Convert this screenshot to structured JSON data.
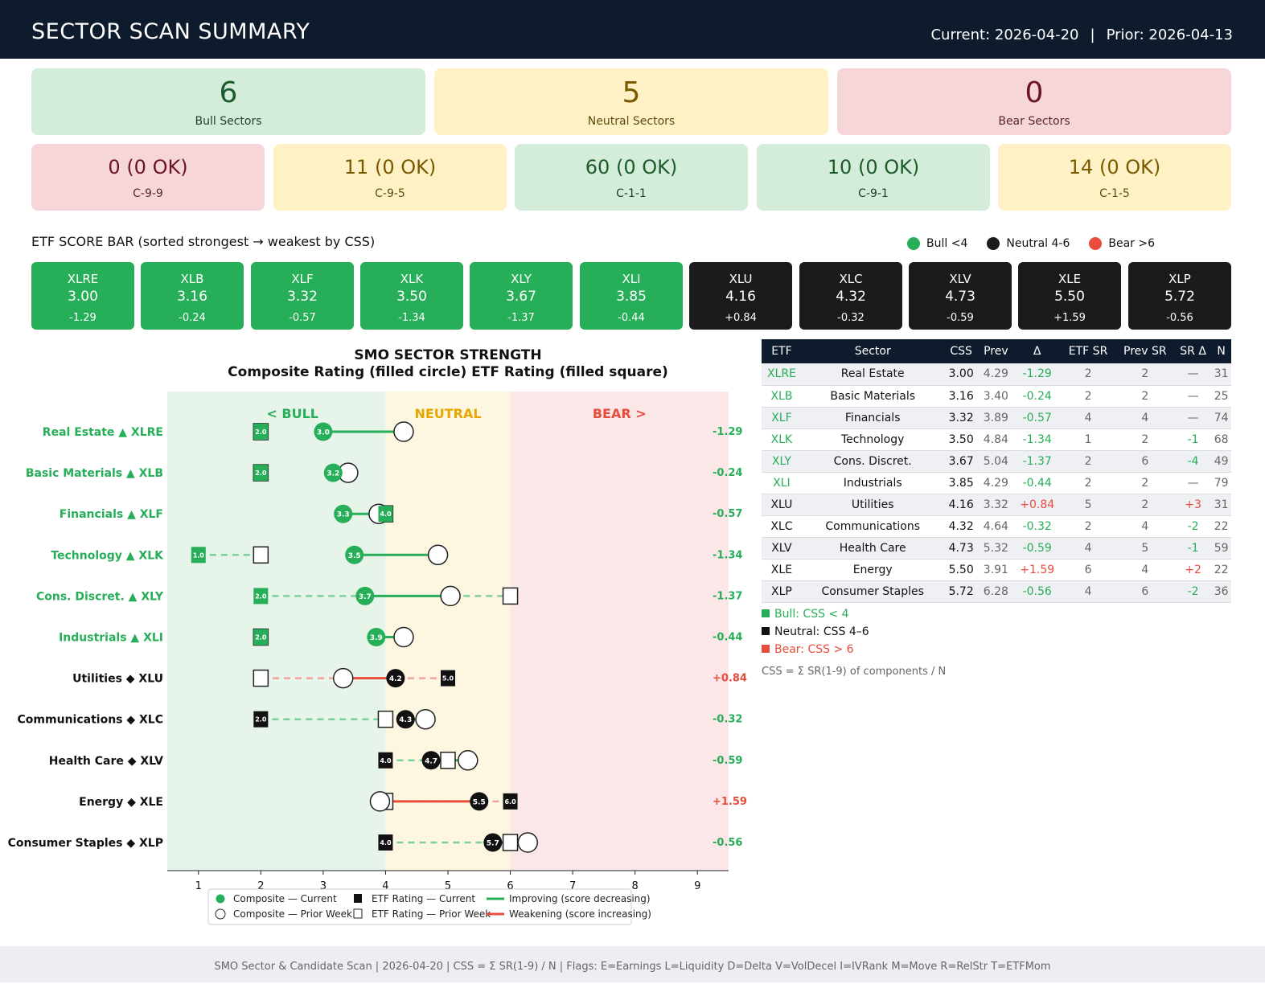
{
  "header": {
    "title": "SECTOR SCAN SUMMARY",
    "current": "Current: 2026-04-20",
    "separator": "|",
    "prior": "Prior: 2026-04-13"
  },
  "summary": [
    {
      "value": "6",
      "label": "Bull Sectors",
      "tone": "green"
    },
    {
      "value": "5",
      "label": "Neutral Sectors",
      "tone": "yellow"
    },
    {
      "value": "0",
      "label": "Bear Sectors",
      "tone": "red"
    }
  ],
  "criteria": [
    {
      "value": "0 (0 OK)",
      "label": "C-9-9",
      "tone": "red"
    },
    {
      "value": "11 (0 OK)",
      "label": "C-9-5",
      "tone": "yellow"
    },
    {
      "value": "60 (0 OK)",
      "label": "C-1-1",
      "tone": "green"
    },
    {
      "value": "10 (0 OK)",
      "label": "C-9-1",
      "tone": "green"
    },
    {
      "value": "14 (0 OK)",
      "label": "C-1-5",
      "tone": "yellow"
    }
  ],
  "score_bar": {
    "title": "ETF SCORE BAR  (sorted strongest → weakest by CSS)",
    "legend": [
      {
        "label": "Bull <4",
        "color": "#27ae58"
      },
      {
        "label": "Neutral 4-6",
        "color": "#1b1b1b"
      },
      {
        "label": "Bear >6",
        "color": "#e74c3c"
      }
    ],
    "items": [
      {
        "etf": "XLRE",
        "css": "3.00",
        "delta": "-1.29",
        "tone": "green"
      },
      {
        "etf": "XLB",
        "css": "3.16",
        "delta": "-0.24",
        "tone": "green"
      },
      {
        "etf": "XLF",
        "css": "3.32",
        "delta": "-0.57",
        "tone": "green"
      },
      {
        "etf": "XLK",
        "css": "3.50",
        "delta": "-1.34",
        "tone": "green"
      },
      {
        "etf": "XLY",
        "css": "3.67",
        "delta": "-1.37",
        "tone": "green"
      },
      {
        "etf": "XLI",
        "css": "3.85",
        "delta": "-0.44",
        "tone": "green"
      },
      {
        "etf": "XLU",
        "css": "4.16",
        "delta": "+0.84",
        "tone": "black"
      },
      {
        "etf": "XLC",
        "css": "4.32",
        "delta": "-0.32",
        "tone": "black"
      },
      {
        "etf": "XLV",
        "css": "4.73",
        "delta": "-0.59",
        "tone": "black"
      },
      {
        "etf": "XLE",
        "css": "5.50",
        "delta": "+1.59",
        "tone": "black"
      },
      {
        "etf": "XLP",
        "css": "5.72",
        "delta": "-0.56",
        "tone": "black"
      }
    ]
  },
  "chart_data": {
    "type": "scatter",
    "title": "SMO SECTOR STRENGTH",
    "subtitle": "Composite Rating (filled circle)   ETF Rating (filled square)",
    "zones": [
      {
        "label": "< BULL",
        "from": 0.5,
        "to": 4,
        "color": "#e6f4ea",
        "text_color": "#27ae58"
      },
      {
        "label": "NEUTRAL",
        "from": 4,
        "to": 6,
        "color": "#fdf6e0",
        "text_color": "#e6a700"
      },
      {
        "label": "BEAR >",
        "from": 6,
        "to": 9.5,
        "color": "#fbe6e8",
        "text_color": "#e74c3c"
      }
    ],
    "xlim": [
      0.5,
      9.5
    ],
    "xticks": [
      "1",
      "2",
      "3",
      "4",
      "5",
      "6",
      "7",
      "8",
      "9"
    ],
    "rows": [
      {
        "label": "Real Estate ▲ XLRE",
        "tone": "bull",
        "comp": 3.0,
        "comp_label": "3.0",
        "prev_comp": 4.29,
        "etf": 2.0,
        "etf_label": "2.0",
        "prev_etf": 2.0,
        "delta": "-1.29"
      },
      {
        "label": "Basic Materials ▲ XLB",
        "tone": "bull",
        "comp": 3.16,
        "comp_label": "3.2",
        "prev_comp": 3.4,
        "etf": 2.0,
        "etf_label": "2.0",
        "prev_etf": 2.0,
        "delta": "-0.24"
      },
      {
        "label": "Financials ▲ XLF",
        "tone": "bull",
        "comp": 3.32,
        "comp_label": "3.3",
        "prev_comp": 3.89,
        "etf": 4.0,
        "etf_label": "4.0",
        "prev_etf": 4.0,
        "delta": "-0.57"
      },
      {
        "label": "Technology ▲ XLK",
        "tone": "bull",
        "comp": 3.5,
        "comp_label": "3.5",
        "prev_comp": 4.84,
        "etf": 1.0,
        "etf_label": "1.0",
        "prev_etf": 2.0,
        "delta": "-1.34"
      },
      {
        "label": "Cons. Discret. ▲ XLY",
        "tone": "bull",
        "comp": 3.67,
        "comp_label": "3.7",
        "prev_comp": 5.04,
        "etf": 2.0,
        "etf_label": "2.0",
        "prev_etf": 6.0,
        "delta": "-1.37"
      },
      {
        "label": "Industrials ▲ XLI",
        "tone": "bull",
        "comp": 3.85,
        "comp_label": "3.9",
        "prev_comp": 4.29,
        "etf": 2.0,
        "etf_label": "2.0",
        "prev_etf": 2.0,
        "delta": "-0.44"
      },
      {
        "label": "Utilities ◆ XLU",
        "tone": "neutral",
        "comp": 4.16,
        "comp_label": "4.2",
        "prev_comp": 3.32,
        "etf": 5.0,
        "etf_label": "5.0",
        "prev_etf": 2.0,
        "delta": "+0.84"
      },
      {
        "label": "Communications ◆ XLC",
        "tone": "neutral",
        "comp": 4.32,
        "comp_label": "4.3",
        "prev_comp": 4.64,
        "etf": 2.0,
        "etf_label": "2.0",
        "prev_etf": 4.0,
        "delta": "-0.32"
      },
      {
        "label": "Health Care ◆ XLV",
        "tone": "neutral",
        "comp": 4.73,
        "comp_label": "4.7",
        "prev_comp": 5.32,
        "etf": 4.0,
        "etf_label": "4.0",
        "prev_etf": 5.0,
        "delta": "-0.59"
      },
      {
        "label": "Energy ◆ XLE",
        "tone": "neutral",
        "comp": 5.5,
        "comp_label": "5.5",
        "prev_comp": 3.91,
        "etf": 6.0,
        "etf_label": "6.0",
        "prev_etf": 4.0,
        "delta": "+1.59"
      },
      {
        "label": "Consumer Staples ◆ XLP",
        "tone": "neutral",
        "comp": 5.72,
        "comp_label": "5.7",
        "prev_comp": 6.28,
        "etf": 4.0,
        "etf_label": "4.0",
        "prev_etf": 6.0,
        "delta": "-0.56"
      }
    ],
    "legend": [
      "Composite — Current",
      "Composite — Prior Week",
      "ETF Rating — Current",
      "ETF Rating — Prior Week",
      "Improving (score decreasing)",
      "Weakening (score increasing)"
    ],
    "colors": {
      "bull": "#27ae58",
      "neutral": "#111111",
      "improve": "#27ae58",
      "weaken": "#e74c3c"
    }
  },
  "table": {
    "columns": [
      "ETF",
      "Sector",
      "CSS",
      "Prev",
      "Δ",
      "ETF SR",
      "Prev SR",
      "SR Δ",
      "N"
    ],
    "rows": [
      {
        "etf": "XLRE",
        "sector": "Real Estate",
        "css": "3.00",
        "prev": "4.29",
        "delta": "-1.29",
        "sr": "2",
        "prev_sr": "2",
        "sr_delta": "—",
        "n": "31",
        "tone": "bull"
      },
      {
        "etf": "XLB",
        "sector": "Basic Materials",
        "css": "3.16",
        "prev": "3.40",
        "delta": "-0.24",
        "sr": "2",
        "prev_sr": "2",
        "sr_delta": "—",
        "n": "25",
        "tone": "bull"
      },
      {
        "etf": "XLF",
        "sector": "Financials",
        "css": "3.32",
        "prev": "3.89",
        "delta": "-0.57",
        "sr": "4",
        "prev_sr": "4",
        "sr_delta": "—",
        "n": "74",
        "tone": "bull"
      },
      {
        "etf": "XLK",
        "sector": "Technology",
        "css": "3.50",
        "prev": "4.84",
        "delta": "-1.34",
        "sr": "1",
        "prev_sr": "2",
        "sr_delta": "-1",
        "n": "68",
        "tone": "bull"
      },
      {
        "etf": "XLY",
        "sector": "Cons. Discret.",
        "css": "3.67",
        "prev": "5.04",
        "delta": "-1.37",
        "sr": "2",
        "prev_sr": "6",
        "sr_delta": "-4",
        "n": "49",
        "tone": "bull"
      },
      {
        "etf": "XLI",
        "sector": "Industrials",
        "css": "3.85",
        "prev": "4.29",
        "delta": "-0.44",
        "sr": "2",
        "prev_sr": "2",
        "sr_delta": "—",
        "n": "79",
        "tone": "bull"
      },
      {
        "etf": "XLU",
        "sector": "Utilities",
        "css": "4.16",
        "prev": "3.32",
        "delta": "+0.84",
        "sr": "5",
        "prev_sr": "2",
        "sr_delta": "+3",
        "n": "31",
        "tone": "neutral"
      },
      {
        "etf": "XLC",
        "sector": "Communications",
        "css": "4.32",
        "prev": "4.64",
        "delta": "-0.32",
        "sr": "2",
        "prev_sr": "4",
        "sr_delta": "-2",
        "n": "22",
        "tone": "neutral"
      },
      {
        "etf": "XLV",
        "sector": "Health Care",
        "css": "4.73",
        "prev": "5.32",
        "delta": "-0.59",
        "sr": "4",
        "prev_sr": "5",
        "sr_delta": "-1",
        "n": "59",
        "tone": "neutral"
      },
      {
        "etf": "XLE",
        "sector": "Energy",
        "css": "5.50",
        "prev": "3.91",
        "delta": "+1.59",
        "sr": "6",
        "prev_sr": "4",
        "sr_delta": "+2",
        "n": "22",
        "tone": "neutral"
      },
      {
        "etf": "XLP",
        "sector": "Consumer Staples",
        "css": "5.72",
        "prev": "6.28",
        "delta": "-0.56",
        "sr": "4",
        "prev_sr": "6",
        "sr_delta": "-2",
        "n": "36",
        "tone": "neutral"
      }
    ],
    "legend": [
      {
        "label": "Bull: CSS < 4",
        "color": "#27ae58"
      },
      {
        "label": "Neutral: CSS 4–6",
        "color": "#111111"
      },
      {
        "label": "Bear: CSS > 6",
        "color": "#e74c3c"
      }
    ],
    "note": "CSS = Σ SR(1-9) of components / N"
  },
  "footer": "SMO Sector & Candidate Scan  |  2026-04-20  |  CSS = Σ SR(1-9) / N  |  Flags: E=Earnings  L=Liquidity  D=Delta  V=VolDecel  I=IVRank  M=Move  R=RelStr  T=ETFMom"
}
